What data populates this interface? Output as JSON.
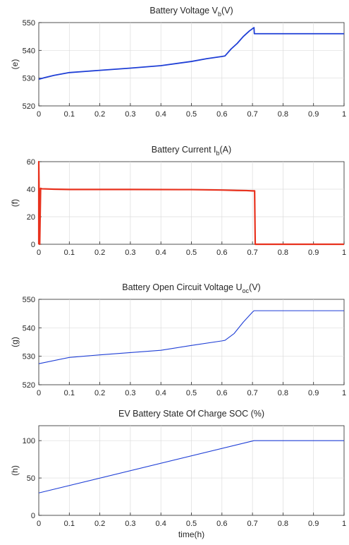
{
  "chart_data": [
    {
      "type": "line",
      "title_main": "Battery Voltage V",
      "title_sub": "b",
      "title_tail": "(V)",
      "ylabel": "(e)",
      "xlabel": "",
      "xlim": [
        0,
        1
      ],
      "ylim": [
        520,
        550
      ],
      "xticks": [
        0,
        0.1,
        0.2,
        0.3,
        0.4,
        0.5,
        0.6,
        0.7,
        0.8,
        0.9,
        1
      ],
      "yticks": [
        520,
        530,
        540,
        550
      ],
      "grid": true,
      "series": [
        {
          "color": "#1f3fd6",
          "width": 1.8,
          "x": [
            0,
            0.02,
            0.05,
            0.1,
            0.2,
            0.3,
            0.4,
            0.5,
            0.55,
            0.6,
            0.61,
            0.63,
            0.65,
            0.67,
            0.69,
            0.705,
            0.706,
            0.72,
            0.8,
            0.9,
            1
          ],
          "y": [
            529.6,
            530.2,
            531,
            532,
            532.8,
            533.6,
            534.5,
            536,
            537,
            537.8,
            538,
            540.5,
            542.5,
            545,
            547,
            548.2,
            546,
            546,
            546,
            546,
            546
          ]
        }
      ]
    },
    {
      "type": "line",
      "title_main": "Battery Current I",
      "title_sub": "b",
      "title_tail": "(A)",
      "ylabel": "(f)",
      "xlabel": "",
      "xlim": [
        0,
        1
      ],
      "ylim": [
        0,
        60
      ],
      "xticks": [
        0,
        0.1,
        0.2,
        0.3,
        0.4,
        0.5,
        0.6,
        0.7,
        0.8,
        0.9,
        1
      ],
      "yticks": [
        0,
        20,
        40,
        60
      ],
      "grid": true,
      "series": [
        {
          "color": "#e8321e",
          "width": 2.2,
          "x": [
            0,
            0,
            0.003,
            0.006,
            0.01,
            0.05,
            0.1,
            0.3,
            0.5,
            0.6,
            0.65,
            0.68,
            0.7,
            0.707,
            0.709,
            0.8,
            0.9,
            1
          ],
          "y": [
            0,
            60,
            0,
            40.6,
            40.3,
            40,
            39.8,
            39.8,
            39.7,
            39.4,
            39.1,
            39,
            38.8,
            38.8,
            0,
            0,
            0,
            0
          ]
        }
      ]
    },
    {
      "type": "line",
      "title_main": "Battery Open Circuit Voltage U",
      "title_sub": "oc",
      "title_tail": "(V)",
      "ylabel": "(g)",
      "xlabel": "",
      "xlim": [
        0,
        1
      ],
      "ylim": [
        520,
        550
      ],
      "xticks": [
        0,
        0.1,
        0.2,
        0.3,
        0.4,
        0.5,
        0.6,
        0.7,
        0.8,
        0.9,
        1
      ],
      "yticks": [
        520,
        530,
        540,
        550
      ],
      "grid": true,
      "series": [
        {
          "color": "#1f3fd6",
          "width": 1.1,
          "x": [
            0,
            0.1,
            0.2,
            0.3,
            0.4,
            0.5,
            0.6,
            0.61,
            0.64,
            0.67,
            0.7,
            0.705,
            0.8,
            0.9,
            1
          ],
          "y": [
            527.4,
            529.6,
            530.5,
            531.3,
            532.1,
            533.8,
            535.4,
            535.6,
            538,
            542,
            545.5,
            546,
            546,
            546,
            546
          ]
        }
      ]
    },
    {
      "type": "line",
      "title_main": "EV Battery State Of Charge SOC (%)",
      "title_sub": "",
      "title_tail": "",
      "ylabel": "(h)",
      "xlabel": "time(h)",
      "xlim": [
        0,
        1
      ],
      "ylim": [
        0,
        120
      ],
      "xticks": [
        0,
        0.1,
        0.2,
        0.3,
        0.4,
        0.5,
        0.6,
        0.7,
        0.8,
        0.9,
        1
      ],
      "yticks": [
        0,
        50,
        100
      ],
      "grid": true,
      "series": [
        {
          "color": "#1f3fd6",
          "width": 1.1,
          "x": [
            0,
            0.705,
            0.8,
            0.9,
            1
          ],
          "y": [
            30,
            100,
            100,
            100,
            100
          ]
        }
      ]
    }
  ]
}
